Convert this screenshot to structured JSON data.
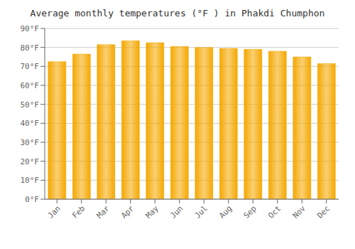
{
  "chart_data": {
    "type": "bar",
    "title": "Average monthly temperatures (°F ) in Phakdi Chumphon",
    "categories": [
      "Jan",
      "Feb",
      "Mar",
      "Apr",
      "May",
      "Jun",
      "Jul",
      "Aug",
      "Sep",
      "Oct",
      "Nov",
      "Dec"
    ],
    "values": [
      72.5,
      76.5,
      81.5,
      83.5,
      82.5,
      80.5,
      80.0,
      79.5,
      79.0,
      78.0,
      75.0,
      71.5
    ],
    "color": "#F5A800",
    "ylim": [
      0,
      90
    ],
    "yticks": [
      {
        "value": 0,
        "label": "0°F"
      },
      {
        "value": 10,
        "label": "10°F"
      },
      {
        "value": 20,
        "label": "20°F"
      },
      {
        "value": 30,
        "label": "30°F"
      },
      {
        "value": 40,
        "label": "40°F"
      },
      {
        "value": 50,
        "label": "50°F"
      },
      {
        "value": 60,
        "label": "60°F"
      },
      {
        "value": 70,
        "label": "70°F"
      },
      {
        "value": 80,
        "label": "80°F"
      },
      {
        "value": 90,
        "label": "90°F"
      }
    ],
    "grid": true
  }
}
